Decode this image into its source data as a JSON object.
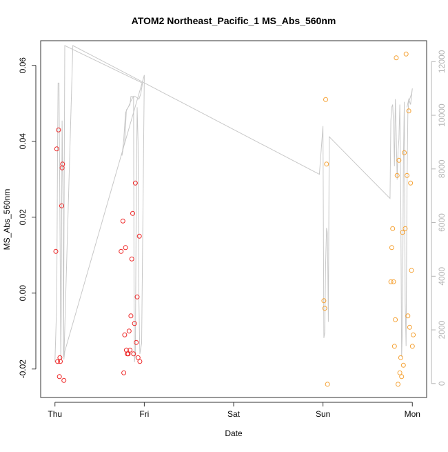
{
  "chart_data": {
    "type": "scatter",
    "title": "ATOM2 Northeast_Pacific_1 MS_Abs_560nm",
    "xlabel": "Date",
    "ylabel": "MS_Abs_560nm",
    "x_tick_labels": [
      "Thu",
      "Fri",
      "Sat",
      "Sun",
      "Mon"
    ],
    "x_tick_values": [
      0,
      1,
      2,
      3,
      4
    ],
    "xlim": [
      -0.16,
      4.16
    ],
    "ylim": [
      -0.0275,
      0.0665
    ],
    "y_ticks": [
      -0.02,
      0.0,
      0.02,
      0.04,
      0.06
    ],
    "y_tick_labels": [
      "-0.02",
      "0.00",
      "0.02",
      "0.04",
      "0.06"
    ],
    "y2_ticks": [
      0,
      2000,
      4000,
      6000,
      8000,
      10000,
      12000
    ],
    "y2_tick_labels": [
      "0",
      "2000",
      "4000",
      "6000",
      "8000",
      "10000",
      "12000"
    ],
    "y2lim": [
      -520,
      12780
    ],
    "colors": {
      "series_red": "#ee2222",
      "series_orange": "#f5a030",
      "secondary_line": "#c8c8c8",
      "axis": "#333333",
      "text": "#000000",
      "right_axis_text": "#b4b4b4"
    },
    "series": [
      {
        "color_key": "series_red",
        "points": [
          {
            "x": 0.01,
            "y": 0.011
          },
          {
            "x": 0.02,
            "y": 0.038
          },
          {
            "x": 0.03,
            "y": -0.018
          },
          {
            "x": 0.04,
            "y": 0.043
          },
          {
            "x": 0.05,
            "y": -0.022
          },
          {
            "x": 0.055,
            "y": -0.017
          },
          {
            "x": 0.06,
            "y": -0.018
          },
          {
            "x": 0.075,
            "y": 0.023
          },
          {
            "x": 0.08,
            "y": 0.033
          },
          {
            "x": 0.085,
            "y": 0.034
          },
          {
            "x": 0.1,
            "y": -0.023
          },
          {
            "x": 0.74,
            "y": 0.011
          },
          {
            "x": 0.76,
            "y": 0.019
          },
          {
            "x": 0.77,
            "y": -0.021
          },
          {
            "x": 0.78,
            "y": -0.011
          },
          {
            "x": 0.79,
            "y": 0.012
          },
          {
            "x": 0.8,
            "y": -0.015
          },
          {
            "x": 0.81,
            "y": -0.016
          },
          {
            "x": 0.82,
            "y": -0.016
          },
          {
            "x": 0.83,
            "y": -0.01
          },
          {
            "x": 0.84,
            "y": -0.015
          },
          {
            "x": 0.85,
            "y": -0.006
          },
          {
            "x": 0.86,
            "y": 0.009
          },
          {
            "x": 0.87,
            "y": 0.021
          },
          {
            "x": 0.88,
            "y": -0.016
          },
          {
            "x": 0.89,
            "y": -0.008
          },
          {
            "x": 0.9,
            "y": 0.029
          },
          {
            "x": 0.91,
            "y": -0.013
          },
          {
            "x": 0.92,
            "y": -0.001
          },
          {
            "x": 0.93,
            "y": -0.017
          },
          {
            "x": 0.945,
            "y": 0.015
          },
          {
            "x": 0.95,
            "y": -0.018
          }
        ]
      },
      {
        "color_key": "series_orange",
        "points": [
          {
            "x": 3.01,
            "y": -0.002
          },
          {
            "x": 3.02,
            "y": -0.004
          },
          {
            "x": 3.03,
            "y": 0.051
          },
          {
            "x": 3.04,
            "y": 0.034
          },
          {
            "x": 3.05,
            "y": -0.024
          },
          {
            "x": 3.76,
            "y": 0.003
          },
          {
            "x": 3.77,
            "y": 0.012
          },
          {
            "x": 3.78,
            "y": 0.017
          },
          {
            "x": 3.79,
            "y": 0.003
          },
          {
            "x": 3.8,
            "y": -0.014
          },
          {
            "x": 3.81,
            "y": -0.007
          },
          {
            "x": 3.82,
            "y": 0.062
          },
          {
            "x": 3.83,
            "y": 0.031
          },
          {
            "x": 3.84,
            "y": -0.024
          },
          {
            "x": 3.85,
            "y": 0.035
          },
          {
            "x": 3.86,
            "y": -0.021
          },
          {
            "x": 3.87,
            "y": -0.017
          },
          {
            "x": 3.88,
            "y": -0.022
          },
          {
            "x": 3.89,
            "y": 0.016
          },
          {
            "x": 3.9,
            "y": -0.019
          },
          {
            "x": 3.91,
            "y": 0.037
          },
          {
            "x": 3.92,
            "y": 0.017
          },
          {
            "x": 3.93,
            "y": 0.063
          },
          {
            "x": 3.94,
            "y": 0.031
          },
          {
            "x": 3.95,
            "y": -0.006
          },
          {
            "x": 3.96,
            "y": 0.048
          },
          {
            "x": 3.97,
            "y": -0.009
          },
          {
            "x": 3.98,
            "y": 0.029
          },
          {
            "x": 3.99,
            "y": 0.006
          },
          {
            "x": 4.0,
            "y": -0.014
          },
          {
            "x": 4.01,
            "y": -0.011
          }
        ]
      }
    ],
    "secondary_line": [
      [
        0.0,
        800
      ],
      [
        0.02,
        3000
      ],
      [
        0.03,
        9000
      ],
      [
        0.035,
        11200
      ],
      [
        0.045,
        11200
      ],
      [
        0.05,
        9000
      ],
      [
        0.06,
        4000
      ],
      [
        0.065,
        900
      ],
      [
        0.07,
        2500
      ],
      [
        0.08,
        9800
      ],
      [
        0.09,
        7000
      ],
      [
        0.095,
        1000
      ],
      [
        0.11,
        12600
      ],
      [
        0.98,
        11200
      ],
      [
        0.96,
        10800
      ],
      [
        0.94,
        10600
      ],
      [
        0.9,
        10700
      ],
      [
        0.85,
        10700
      ],
      [
        0.84,
        10400
      ],
      [
        0.8,
        10200
      ],
      [
        0.78,
        9000
      ],
      [
        0.76,
        8700
      ],
      [
        0.75,
        8500
      ],
      [
        0.77,
        9100
      ],
      [
        0.79,
        10100
      ],
      [
        0.82,
        10300
      ],
      [
        0.86,
        10600
      ],
      [
        0.88,
        10700
      ],
      [
        0.885,
        3000
      ],
      [
        0.89,
        800
      ],
      [
        0.9,
        1100
      ],
      [
        0.91,
        7000
      ],
      [
        0.92,
        10300
      ],
      [
        0.93,
        9000
      ],
      [
        0.94,
        3000
      ],
      [
        0.95,
        1100
      ],
      [
        0.97,
        1500
      ],
      [
        1.0,
        11500
      ],
      [
        0.11,
        1200
      ],
      [
        0.1,
        900
      ],
      [
        0.2,
        12600
      ],
      [
        2.96,
        7800
      ],
      [
        3.0,
        9600
      ],
      [
        3.01,
        1700
      ],
      [
        3.02,
        1900
      ],
      [
        3.03,
        4500
      ],
      [
        3.04,
        5800
      ],
      [
        3.05,
        5600
      ],
      [
        3.06,
        2300
      ],
      [
        3.07,
        9200
      ],
      [
        3.75,
        6900
      ],
      [
        3.76,
        9800
      ],
      [
        3.77,
        10300
      ],
      [
        3.78,
        10400
      ],
      [
        3.79,
        9700
      ],
      [
        3.8,
        8100
      ],
      [
        3.81,
        10600
      ],
      [
        3.82,
        9300
      ],
      [
        3.83,
        7600
      ],
      [
        3.84,
        8700
      ],
      [
        3.85,
        9100
      ],
      [
        3.86,
        10400
      ],
      [
        3.87,
        7200
      ],
      [
        3.88,
        1000
      ],
      [
        3.89,
        2200
      ],
      [
        3.9,
        8300
      ],
      [
        3.91,
        10500
      ],
      [
        3.92,
        3000
      ],
      [
        3.93,
        1400
      ],
      [
        3.94,
        7200
      ],
      [
        3.95,
        10100
      ],
      [
        3.96,
        10500
      ],
      [
        3.97,
        10600
      ],
      [
        3.98,
        10700
      ],
      [
        3.99,
        10800
      ],
      [
        4.0,
        11000
      ],
      [
        3.98,
        10400
      ],
      [
        3.96,
        10600
      ],
      [
        3.94,
        10300
      ]
    ]
  }
}
